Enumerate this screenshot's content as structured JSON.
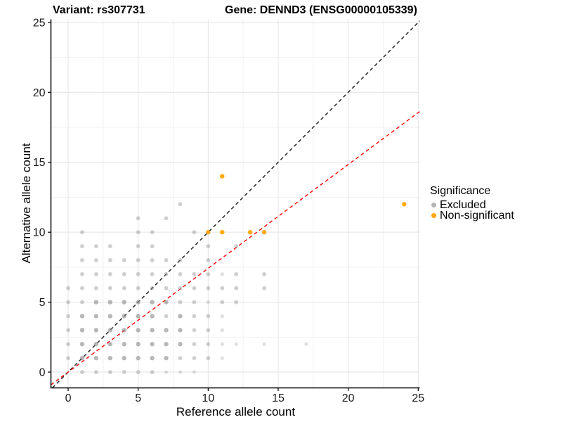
{
  "header": {
    "variant_title": "Variant: rs307731",
    "gene_title": "Gene: DENND3 (ENSG00000105339)"
  },
  "chart_data": {
    "type": "scatter",
    "xlabel": "Reference allele count",
    "ylabel": "Alternative allele count",
    "x_ticks": [
      0,
      5,
      10,
      15,
      20,
      25
    ],
    "y_ticks": [
      0,
      5,
      10,
      15,
      20,
      25
    ],
    "minor_ticks": [
      2.5,
      7.5,
      12.5,
      17.5,
      22.5
    ],
    "xlim": [
      -1.23,
      25.11
    ],
    "ylim": [
      -1.13,
      25.22
    ],
    "grid": "major and minor gridlines, white background, black left/bottom axis lines",
    "legend": {
      "title": "Significance",
      "position": "right",
      "items": [
        {
          "label": "Excluded",
          "color": "#b3b3b3"
        },
        {
          "label": "Non-significant",
          "color": "#ffa500"
        }
      ]
    },
    "lines": [
      {
        "name": "identity-line",
        "slope": 1.0,
        "intercept": 0,
        "color": "#1a1a1a",
        "style": "dashed"
      },
      {
        "name": "expected-ratio-line",
        "slope": 0.742,
        "intercept": 0,
        "color": "#ff0000",
        "style": "dashed"
      }
    ],
    "series": [
      {
        "name": "Excluded",
        "color": "#8c8c8c",
        "alpha_levels": {
          "1": 0.28,
          "2": 0.42,
          "3": 0.62
        },
        "radius_levels": {
          "1": 2.6,
          "2": 2.9,
          "3": 3.2
        },
        "points": [
          [
            1,
            0,
            2
          ],
          [
            2,
            0,
            2
          ],
          [
            3,
            0,
            2
          ],
          [
            4,
            0,
            2
          ],
          [
            5,
            0,
            2
          ],
          [
            6,
            0,
            2
          ],
          [
            7,
            0,
            1
          ],
          [
            8,
            0,
            1
          ],
          [
            9,
            0,
            1
          ],
          [
            0,
            1,
            2
          ],
          [
            1,
            1,
            3
          ],
          [
            2,
            1,
            3
          ],
          [
            3,
            1,
            3
          ],
          [
            4,
            1,
            3
          ],
          [
            5,
            1,
            3
          ],
          [
            6,
            1,
            3
          ],
          [
            7,
            1,
            3
          ],
          [
            8,
            1,
            2
          ],
          [
            9,
            1,
            2
          ],
          [
            10,
            1,
            2
          ],
          [
            11,
            1,
            1
          ],
          [
            0,
            2,
            2
          ],
          [
            1,
            2,
            3
          ],
          [
            2,
            2,
            3
          ],
          [
            3,
            2,
            3
          ],
          [
            4,
            2,
            3
          ],
          [
            5,
            2,
            3
          ],
          [
            6,
            2,
            3
          ],
          [
            7,
            2,
            3
          ],
          [
            8,
            2,
            3
          ],
          [
            9,
            2,
            2
          ],
          [
            10,
            2,
            2
          ],
          [
            11,
            2,
            1
          ],
          [
            12,
            2,
            1
          ],
          [
            14,
            2,
            1
          ],
          [
            17,
            2,
            1
          ],
          [
            0,
            3,
            2
          ],
          [
            1,
            3,
            3
          ],
          [
            2,
            3,
            3
          ],
          [
            3,
            3,
            3
          ],
          [
            4,
            3,
            3
          ],
          [
            5,
            3,
            3
          ],
          [
            6,
            3,
            3
          ],
          [
            7,
            3,
            3
          ],
          [
            8,
            3,
            3
          ],
          [
            9,
            3,
            2
          ],
          [
            10,
            3,
            2
          ],
          [
            11,
            3,
            1
          ],
          [
            0,
            4,
            2
          ],
          [
            1,
            4,
            3
          ],
          [
            2,
            4,
            3
          ],
          [
            3,
            4,
            3
          ],
          [
            4,
            4,
            3
          ],
          [
            5,
            4,
            3
          ],
          [
            6,
            4,
            3
          ],
          [
            7,
            4,
            2
          ],
          [
            8,
            4,
            3
          ],
          [
            9,
            4,
            2
          ],
          [
            10,
            4,
            2
          ],
          [
            11,
            4,
            1
          ],
          [
            0,
            5,
            2
          ],
          [
            1,
            5,
            2
          ],
          [
            2,
            5,
            3
          ],
          [
            3,
            5,
            3
          ],
          [
            4,
            5,
            3
          ],
          [
            5,
            5,
            3
          ],
          [
            6,
            5,
            3
          ],
          [
            7,
            5,
            3
          ],
          [
            8,
            5,
            2
          ],
          [
            9,
            5,
            2
          ],
          [
            10,
            5,
            1
          ],
          [
            11,
            5,
            2
          ],
          [
            12,
            5,
            2
          ],
          [
            0,
            6,
            2
          ],
          [
            1,
            6,
            2
          ],
          [
            2,
            6,
            2
          ],
          [
            3,
            6,
            2
          ],
          [
            4,
            6,
            2
          ],
          [
            5,
            6,
            2
          ],
          [
            6,
            6,
            2
          ],
          [
            7,
            6,
            2
          ],
          [
            8,
            6,
            2
          ],
          [
            9,
            6,
            2
          ],
          [
            10,
            6,
            2
          ],
          [
            11,
            6,
            2
          ],
          [
            12,
            6,
            2
          ],
          [
            14,
            6,
            2
          ],
          [
            1,
            7,
            2
          ],
          [
            2,
            7,
            2
          ],
          [
            3,
            7,
            2
          ],
          [
            4,
            7,
            2
          ],
          [
            5,
            7,
            2
          ],
          [
            6,
            7,
            2
          ],
          [
            7,
            7,
            2
          ],
          [
            8,
            7,
            2
          ],
          [
            9,
            7,
            2
          ],
          [
            10,
            7,
            2
          ],
          [
            11,
            7,
            1
          ],
          [
            12,
            7,
            2
          ],
          [
            14,
            7,
            2
          ],
          [
            1,
            8,
            2
          ],
          [
            2,
            8,
            2
          ],
          [
            3,
            8,
            2
          ],
          [
            4,
            8,
            2
          ],
          [
            5,
            8,
            2
          ],
          [
            6,
            8,
            2
          ],
          [
            7,
            8,
            2
          ],
          [
            8,
            8,
            2
          ],
          [
            10,
            8,
            2
          ],
          [
            1,
            9,
            2
          ],
          [
            2,
            9,
            2
          ],
          [
            3,
            9,
            2
          ],
          [
            5,
            9,
            2
          ],
          [
            6,
            9,
            2
          ],
          [
            10,
            9,
            2
          ],
          [
            12,
            9,
            2
          ],
          [
            1,
            10,
            2
          ],
          [
            5,
            10,
            2
          ],
          [
            6,
            10,
            2
          ],
          [
            9,
            10,
            2
          ],
          [
            5,
            11,
            2
          ],
          [
            7,
            11,
            2
          ],
          [
            8,
            12,
            2
          ]
        ]
      },
      {
        "name": "Non-significant",
        "color": "#ffa500",
        "alpha": 0.95,
        "radius": 3.2,
        "points": [
          [
            10,
            10
          ],
          [
            11,
            10
          ],
          [
            13,
            10
          ],
          [
            14,
            10
          ],
          [
            11,
            14
          ],
          [
            24,
            12
          ]
        ]
      }
    ],
    "colors": {
      "grid_major": "#e3e3e3",
      "grid_minor": "#f2f2f2",
      "axis_line": "#000000",
      "tick_label": "#1a1a1a"
    }
  }
}
